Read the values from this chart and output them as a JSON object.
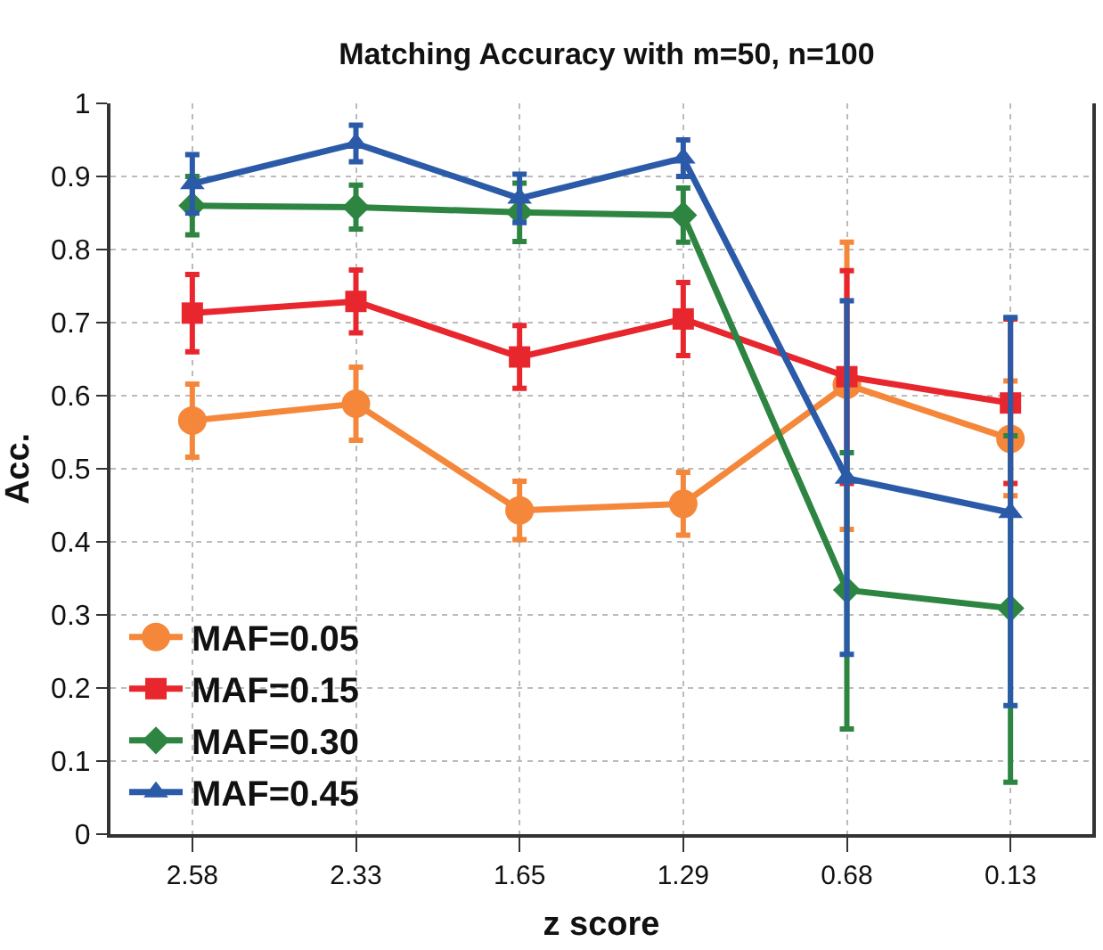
{
  "chart_data": {
    "type": "line",
    "title": "Matching Accuracy with m=50, n=100",
    "xlabel": "z score",
    "ylabel": "Acc.",
    "categories": [
      "2.58",
      "2.33",
      "1.65",
      "1.29",
      "0.68",
      "0.13"
    ],
    "ylim": [
      0,
      1
    ],
    "yticks": [
      0,
      0.1,
      0.2,
      0.3,
      0.4,
      0.5,
      0.6,
      0.7,
      0.8,
      0.9,
      1
    ],
    "grid": true,
    "legend": "bottom left",
    "line_style": "solid",
    "series": [
      {
        "name": "MAF=0.05",
        "color": "#f5873a",
        "marker": "circle",
        "values": [
          0.566,
          0.589,
          0.443,
          0.452,
          0.615,
          0.541
        ],
        "errors": [
          0.05,
          0.05,
          0.04,
          0.043,
          [
            0.417,
            0.81
          ],
          [
            0.463,
            0.62
          ]
        ]
      },
      {
        "name": "MAF=0.15",
        "color": "#e8262d",
        "marker": "square",
        "values": [
          0.713,
          0.729,
          0.653,
          0.705,
          0.626,
          0.59
        ],
        "errors": [
          0.053,
          0.043,
          0.043,
          0.05,
          [
            0.48,
            0.771
          ],
          [
            0.48,
            0.705
          ]
        ]
      },
      {
        "name": "MAF=0.30",
        "color": "#2e8542",
        "marker": "diamond",
        "values": [
          0.86,
          0.858,
          0.851,
          0.847,
          0.334,
          0.309
        ],
        "errors": [
          0.04,
          0.03,
          0.04,
          0.037,
          [
            0.144,
            0.522
          ],
          [
            0.071,
            0.545
          ]
        ]
      },
      {
        "name": "MAF=0.45",
        "color": "#2b5ba8",
        "marker": "triangle",
        "values": [
          0.89,
          0.945,
          0.87,
          0.925,
          0.487,
          0.44
        ],
        "errors": [
          0.04,
          0.025,
          0.033,
          0.025,
          [
            0.246,
            0.73
          ],
          [
            0.176,
            0.707
          ]
        ]
      }
    ]
  }
}
